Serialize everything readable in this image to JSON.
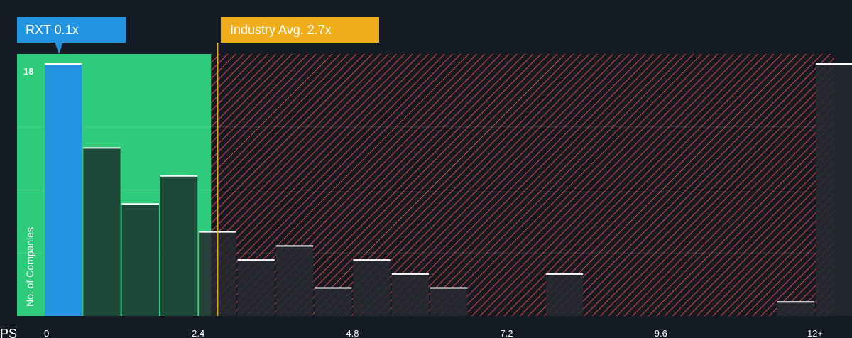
{
  "chart_data": {
    "type": "bar",
    "xlabel": "PS",
    "ylabel": "No. of Companies",
    "x_tick_labels": [
      "0",
      "2.4",
      "4.8",
      "7.2",
      "9.6",
      "12+"
    ],
    "x_tick_values": [
      0,
      2.4,
      4.8,
      7.2,
      9.6,
      12
    ],
    "y_tick_label": "18",
    "ylim": [
      0,
      18
    ],
    "bin_width": 0.6,
    "values": [
      18,
      12,
      8,
      10,
      6,
      4,
      5,
      2,
      4,
      3,
      2,
      0,
      0,
      3,
      0,
      0,
      0,
      0,
      0,
      1,
      18
    ],
    "highlight": {
      "label": "RXT 0.1x",
      "value": 0.1,
      "bin_index": 0,
      "color": "#2394e0"
    },
    "industry_avg": {
      "label": "Industry Avg. 2.7x",
      "value": 2.7,
      "color": "#f0ad1b"
    },
    "fair_range_max": 2.6,
    "colors": {
      "background": "#151b24",
      "fair_zone": "#2ecc7a",
      "bar_fair": "#1d4a38",
      "bar_over": "#262930",
      "hatch_line": "#d2404a",
      "bar_top": "#ffffff"
    },
    "grid": true
  }
}
